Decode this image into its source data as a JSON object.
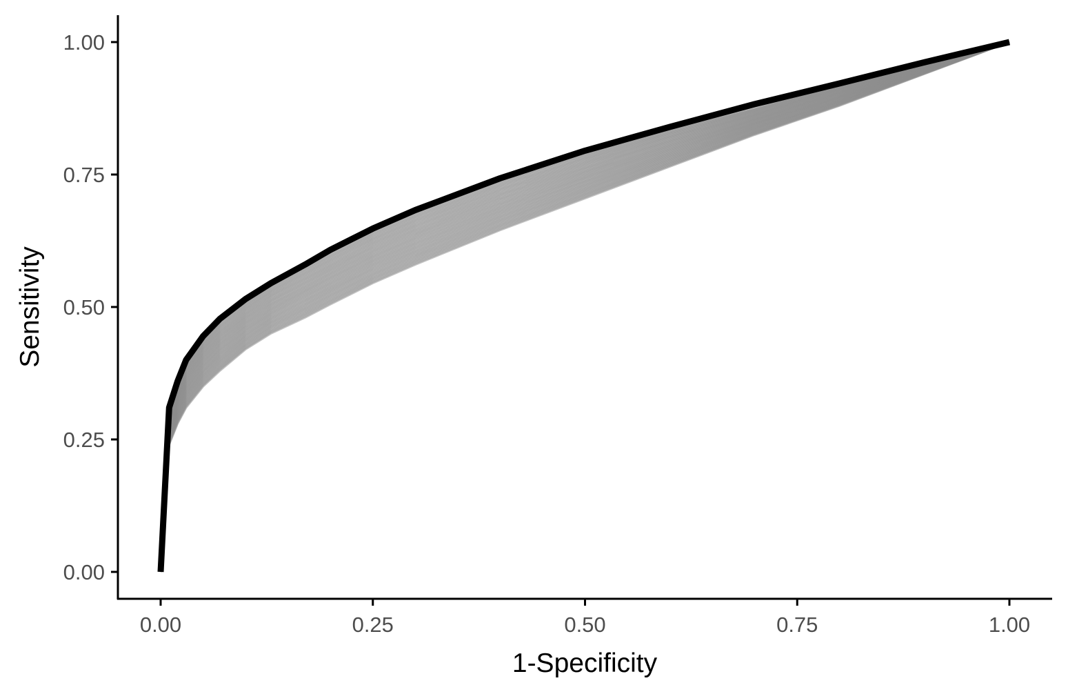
{
  "chart_data": {
    "type": "line",
    "xlabel": "1-Specificity",
    "ylabel": "Sensitivity",
    "xlim": [
      -0.05,
      1.05
    ],
    "ylim": [
      -0.05,
      1.05
    ],
    "x_ticks": [
      "0.00",
      "0.25",
      "0.50",
      "0.75",
      "1.00"
    ],
    "y_ticks": [
      "0.00",
      "0.25",
      "0.50",
      "0.75",
      "1.00"
    ],
    "grid": false,
    "legend": "none",
    "colors": {
      "bootstrap": "#8c8c8c",
      "observed": "#000000",
      "axis_text": "#4d4d4d"
    },
    "series": [
      {
        "role": "bootstrap-band-upper",
        "x": [
          0,
          0.01,
          0.02,
          0.03,
          0.05,
          0.07,
          0.1,
          0.13,
          0.17,
          0.2,
          0.25,
          0.3,
          0.4,
          0.5,
          0.6,
          0.7,
          0.8,
          0.9,
          1.0
        ],
        "y": [
          0,
          0.3,
          0.36,
          0.4,
          0.445,
          0.48,
          0.515,
          0.545,
          0.58,
          0.605,
          0.645,
          0.68,
          0.74,
          0.79,
          0.835,
          0.875,
          0.92,
          0.96,
          1.0
        ]
      },
      {
        "role": "bootstrap-band-lower",
        "x": [
          0,
          0.01,
          0.02,
          0.03,
          0.05,
          0.07,
          0.1,
          0.13,
          0.17,
          0.2,
          0.25,
          0.3,
          0.4,
          0.5,
          0.6,
          0.7,
          0.8,
          0.9,
          1.0
        ],
        "y": [
          0,
          0.24,
          0.28,
          0.31,
          0.35,
          0.38,
          0.42,
          0.45,
          0.48,
          0.505,
          0.545,
          0.58,
          0.645,
          0.705,
          0.765,
          0.825,
          0.88,
          0.94,
          1.0
        ]
      },
      {
        "role": "observed",
        "x": [
          0,
          0.01,
          0.02,
          0.03,
          0.05,
          0.07,
          0.1,
          0.13,
          0.17,
          0.2,
          0.25,
          0.3,
          0.4,
          0.5,
          0.6,
          0.7,
          0.8,
          0.9,
          1.0
        ],
        "y": [
          0,
          0.31,
          0.36,
          0.4,
          0.445,
          0.478,
          0.515,
          0.545,
          0.58,
          0.608,
          0.648,
          0.683,
          0.743,
          0.795,
          0.84,
          0.883,
          0.922,
          0.962,
          1.0
        ]
      }
    ]
  }
}
